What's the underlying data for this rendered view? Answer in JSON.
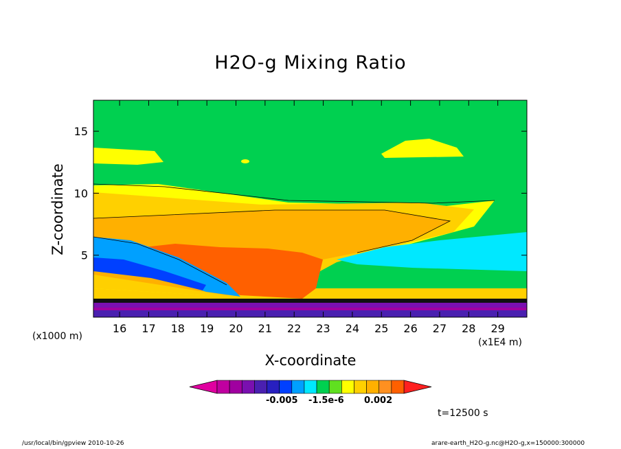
{
  "chart_data": {
    "type": "heatmap",
    "title": "H2O-g Mixing Ratio",
    "xlabel": "X-coordinate",
    "ylabel": "Z-coordinate",
    "x_unit_left": "(x1000 m)",
    "x_unit_right": "(x1E4 m)",
    "xticks": [
      "16",
      "17",
      "18",
      "19",
      "20",
      "21",
      "22",
      "23",
      "24",
      "25",
      "26",
      "27",
      "28",
      "29"
    ],
    "xtick_values": [
      16,
      17,
      18,
      19,
      20,
      21,
      22,
      23,
      24,
      25,
      26,
      27,
      28,
      29
    ],
    "xlim": [
      15.1,
      30
    ],
    "yticks": [
      "5",
      "10",
      "15"
    ],
    "ytick_values": [
      5,
      10,
      15
    ],
    "ylim": [
      0,
      17.5
    ],
    "grid": false,
    "colorbar": {
      "colors": [
        "#e000a0",
        "#c000a0",
        "#a000a0",
        "#7a10b0",
        "#4a20b0",
        "#2820c0",
        "#0040ff",
        "#00a0ff",
        "#00e8ff",
        "#00d050",
        "#60e020",
        "#ffff00",
        "#ffd000",
        "#ffb000",
        "#ff9020",
        "#ff6000",
        "#ff2020"
      ],
      "labels": [
        "-0.005",
        "-1.5e-6",
        "0.002"
      ]
    },
    "time_label": "t=12500 s",
    "footer_left": "/usr/local/bin/gpview  2010-10-26",
    "footer_right": "arare-earth_H2O-g.nc@H2O-g,x=150000:300000"
  }
}
